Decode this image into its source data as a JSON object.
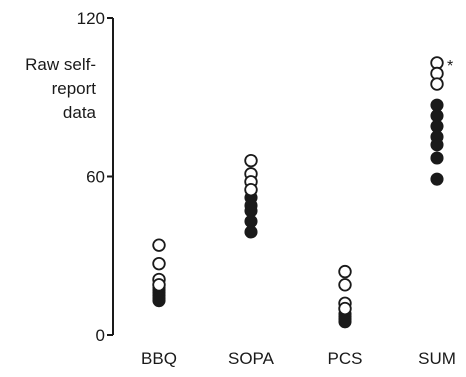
{
  "chart_data": {
    "type": "scatter",
    "ylabel_lines": [
      "Raw self-",
      "report",
      "data"
    ],
    "categories": [
      "BBQ",
      "SOPA",
      "PCS",
      "SUM"
    ],
    "ylim": [
      0,
      120
    ],
    "yticks": [
      0,
      60,
      120
    ],
    "grid": false,
    "legend": "none",
    "marker_colors": {
      "open": "#ffffff",
      "filled": "#1a1a1a",
      "stroke": "#1a1a1a"
    },
    "series": [
      {
        "category": "BBQ",
        "open": [
          34,
          27,
          21,
          19
        ],
        "filled": [
          18,
          17,
          16,
          15,
          14,
          13
        ]
      },
      {
        "category": "SOPA",
        "open": [
          66,
          61,
          58,
          55
        ],
        "filled": [
          52,
          49,
          47,
          43,
          39
        ]
      },
      {
        "category": "PCS",
        "open": [
          24,
          19,
          12,
          10
        ],
        "filled": [
          8,
          7,
          6,
          5
        ]
      },
      {
        "category": "SUM",
        "open": [
          103,
          99,
          95
        ],
        "filled": [
          87,
          83,
          79,
          75,
          72,
          67,
          59
        ]
      }
    ],
    "annotations": [
      {
        "category": "SUM",
        "text": "*"
      }
    ]
  }
}
